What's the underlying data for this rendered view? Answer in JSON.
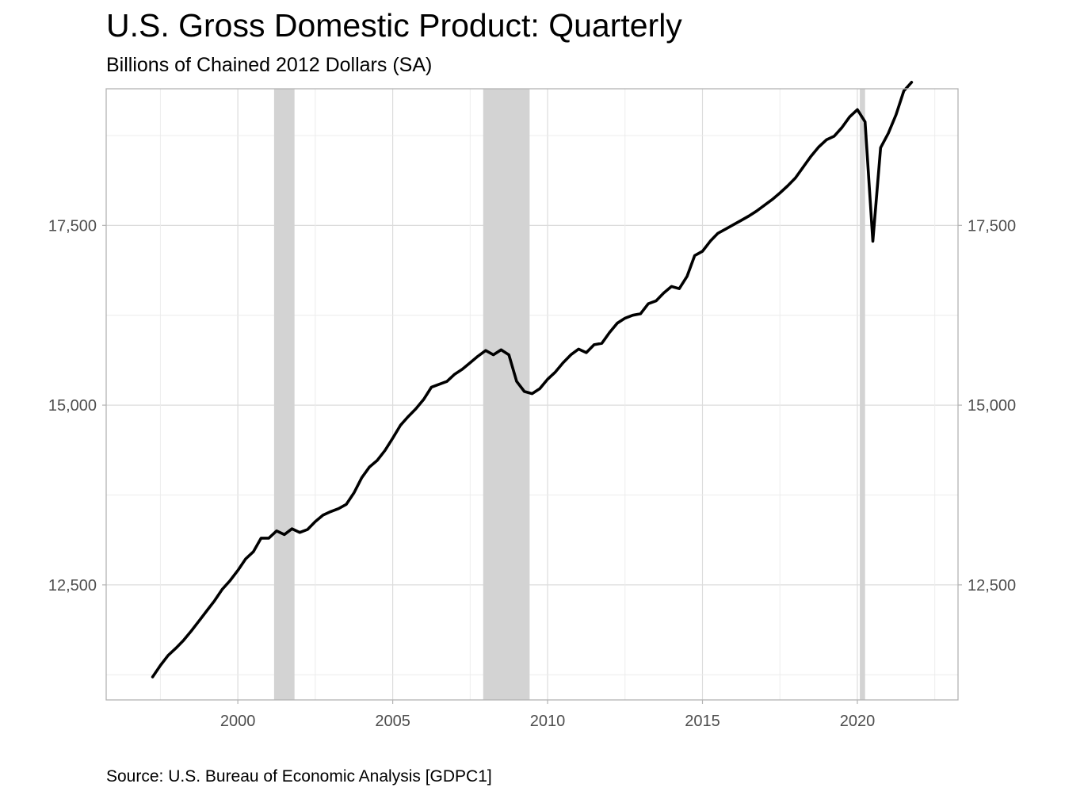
{
  "chart_data": {
    "type": "line",
    "title": "U.S. Gross Domestic Product: Quarterly",
    "subtitle": "Billions of Chained 2012 Dollars (SA)",
    "source": "Source: U.S. Bureau of Economic Analysis [GDPC1]",
    "xlabel": "",
    "ylabel": "",
    "xlim": [
      1995.75,
      2023.25
    ],
    "ylim": [
      10900,
      19400
    ],
    "x_ticks": [
      2000,
      2005,
      2010,
      2015,
      2020
    ],
    "x_tick_labels": [
      "2000",
      "2005",
      "2010",
      "2015",
      "2020"
    ],
    "y_ticks": [
      12500,
      15000,
      17500
    ],
    "y_tick_labels": [
      "12,500",
      "15,000",
      "17,500"
    ],
    "y_minor_ticks": [
      11250,
      13750,
      16250,
      18750
    ],
    "y_axis_both_sides": true,
    "grid": true,
    "legend": "none",
    "line_color": "#000000",
    "recession_color": "#d3d3d3",
    "recessions": [
      {
        "start": 2001.17,
        "end": 2001.83
      },
      {
        "start": 2007.92,
        "end": 2009.42
      },
      {
        "start": 2020.08,
        "end": 2020.25
      }
    ],
    "series": [
      {
        "x": [
          1997.25,
          1997.5,
          1997.75,
          1998.0,
          1998.25,
          1998.5,
          1998.75,
          1999.0,
          1999.25,
          1999.5,
          1999.75,
          2000.0,
          2000.25,
          2000.5,
          2000.75,
          2001.0,
          2001.25,
          2001.5,
          2001.75,
          2002.0,
          2002.25,
          2002.5,
          2002.75,
          2003.0,
          2003.25,
          2003.5,
          2003.75,
          2004.0,
          2004.25,
          2004.5,
          2004.75,
          2005.0,
          2005.25,
          2005.5,
          2005.75,
          2006.0,
          2006.25,
          2006.5,
          2006.75,
          2007.0,
          2007.25,
          2007.5,
          2007.75,
          2008.0,
          2008.25,
          2008.5,
          2008.75,
          2009.0,
          2009.25,
          2009.5,
          2009.75,
          2010.0,
          2010.25,
          2010.5,
          2010.75,
          2011.0,
          2011.25,
          2011.5,
          2011.75,
          2012.0,
          2012.25,
          2012.5,
          2012.75,
          2013.0,
          2013.25,
          2013.5,
          2013.75,
          2014.0,
          2014.25,
          2014.5,
          2014.75,
          2015.0,
          2015.25,
          2015.5,
          2015.75,
          2016.0,
          2016.25,
          2016.5,
          2016.75,
          2017.0,
          2017.25,
          2017.5,
          2017.75,
          2018.0,
          2018.25,
          2018.5,
          2018.75,
          2019.0,
          2019.25,
          2019.5,
          2019.75,
          2020.0,
          2020.25,
          2020.5,
          2020.75,
          2021.0,
          2021.25,
          2021.5,
          2021.75
        ],
        "values": [
          11220,
          11380,
          11520,
          11620,
          11730,
          11860,
          12000,
          12140,
          12280,
          12440,
          12560,
          12700,
          12860,
          12960,
          13150,
          13150,
          13250,
          13200,
          13280,
          13230,
          13270,
          13380,
          13470,
          13520,
          13560,
          13620,
          13780,
          13990,
          14140,
          14230,
          14370,
          14540,
          14720,
          14840,
          14950,
          15080,
          15250,
          15290,
          15330,
          15430,
          15500,
          15590,
          15680,
          15760,
          15700,
          15770,
          15700,
          15330,
          15190,
          15160,
          15230,
          15360,
          15460,
          15590,
          15700,
          15780,
          15730,
          15840,
          15860,
          16010,
          16140,
          16210,
          16250,
          16270,
          16410,
          16450,
          16560,
          16650,
          16620,
          16790,
          17080,
          17140,
          17280,
          17390,
          17450,
          17510,
          17570,
          17630,
          17700,
          17780,
          17860,
          17950,
          18050,
          18160,
          18310,
          18460,
          18590,
          18690,
          18740,
          18860,
          19010,
          19110,
          18940,
          17280,
          18580,
          18780,
          19040,
          19370,
          19490
        ]
      }
    ]
  }
}
